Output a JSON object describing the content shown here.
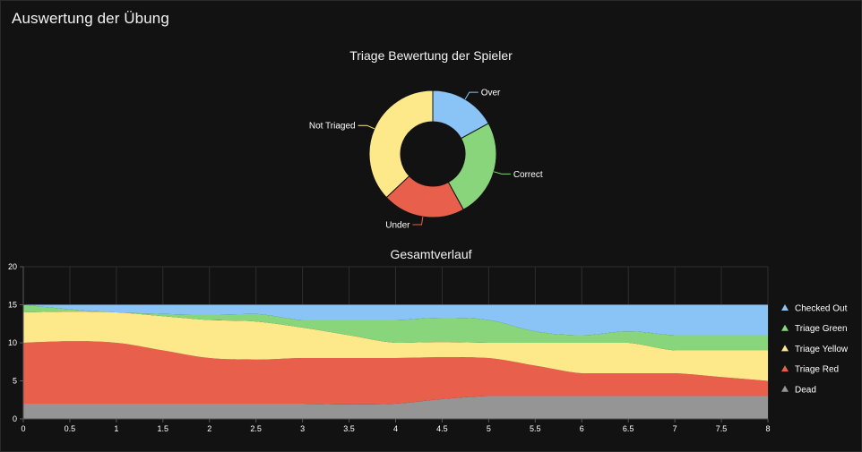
{
  "page": {
    "title": "Auswertung der Übung"
  },
  "colors": {
    "background": "#121212",
    "blue": "#8ac3f5",
    "green": "#89d57b",
    "yellow": "#fde98a",
    "red": "#e8604b",
    "gray": "#959595"
  },
  "chart_data": [
    {
      "type": "pie",
      "title": "Triage Bewertung der Spieler",
      "donut": true,
      "slices": [
        {
          "label": "Over",
          "value": 17,
          "color": "#8ac3f5"
        },
        {
          "label": "Correct",
          "value": 25,
          "color": "#89d57b"
        },
        {
          "label": "Under",
          "value": 21,
          "color": "#e8604b"
        },
        {
          "label": "Not Triaged",
          "value": 37,
          "color": "#fde98a"
        }
      ]
    },
    {
      "type": "area",
      "stacked": true,
      "title": "Gesamtverlauf",
      "xlabel": "",
      "ylabel": "",
      "x": [
        0,
        0.5,
        1,
        1.5,
        2,
        2.5,
        3,
        3.5,
        4,
        4.5,
        5,
        5.5,
        6,
        6.5,
        7,
        7.5,
        8
      ],
      "xlim": [
        0,
        8
      ],
      "ylim": [
        0,
        20
      ],
      "x_ticks": [
        "0",
        "0.5",
        "1",
        "1.5",
        "2",
        "2.5",
        "3",
        "3.5",
        "4",
        "4.5",
        "5",
        "5.5",
        "6",
        "6.5",
        "7",
        "7.5",
        "8"
      ],
      "y_ticks": [
        "0",
        "5",
        "10",
        "15",
        "20"
      ],
      "grid": true,
      "legend_position": "right",
      "series": [
        {
          "name": "Dead",
          "color": "#959595",
          "values": [
            2,
            2,
            2,
            2,
            2,
            2,
            2,
            1.9,
            2,
            2.6,
            3,
            3,
            3,
            3,
            3,
            3,
            3
          ]
        },
        {
          "name": "Triage Red",
          "color": "#e8604b",
          "values": [
            8,
            8.2,
            8,
            7,
            6,
            5.8,
            6,
            6.1,
            6,
            5.5,
            5,
            4,
            3,
            3,
            3,
            2.5,
            2
          ]
        },
        {
          "name": "Triage Yellow",
          "color": "#fde98a",
          "values": [
            4,
            3.9,
            4,
            4.5,
            5,
            5,
            4,
            3,
            2,
            2,
            2,
            3,
            4,
            4,
            3,
            3.5,
            4
          ]
        },
        {
          "name": "Triage Green",
          "color": "#89d57b",
          "values": [
            1,
            0.3,
            0,
            0.3,
            0.7,
            1,
            1,
            2,
            3,
            3.2,
            3,
            1.5,
            1,
            1.5,
            2,
            2,
            2
          ]
        },
        {
          "name": "Checked Out",
          "color": "#8ac3f5",
          "values": [
            0,
            0.6,
            1,
            1.2,
            1.3,
            1.2,
            2,
            2,
            2,
            1.7,
            2,
            3.5,
            4,
            3.5,
            4,
            4,
            4
          ]
        }
      ],
      "legend": [
        "Checked Out",
        "Triage Green",
        "Triage Yellow",
        "Triage Red",
        "Dead"
      ]
    }
  ]
}
